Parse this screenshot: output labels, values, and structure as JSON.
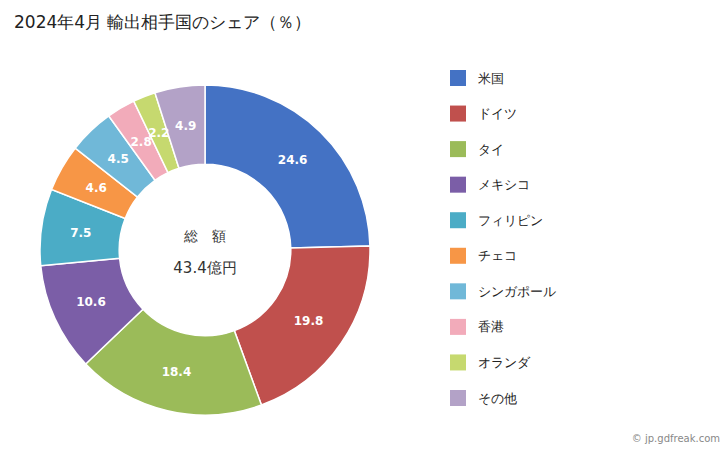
{
  "chart_data": {
    "type": "donut",
    "title": "2024年4月 輸出相手国のシェア（％）",
    "center_text": [
      "総　額",
      "43.4億円"
    ],
    "source": "© jp.gdfreak.com",
    "categories": [
      "米国",
      "ドイツ",
      "タイ",
      "メキシコ",
      "フィリピン",
      "チェコ",
      "シンガポール",
      "香港",
      "オランダ",
      "その他"
    ],
    "values": [
      24.6,
      19.8,
      18.4,
      10.6,
      7.5,
      4.6,
      4.5,
      2.8,
      2.2,
      4.9
    ],
    "colors": [
      "#4472C4",
      "#C0504D",
      "#9BBB59",
      "#7B5EA7",
      "#4BACC6",
      "#F79646",
      "#70B8D8",
      "#F2ABBA",
      "#C6D96F",
      "#B3A2C7"
    ],
    "data_labels": true,
    "legend": "right"
  }
}
